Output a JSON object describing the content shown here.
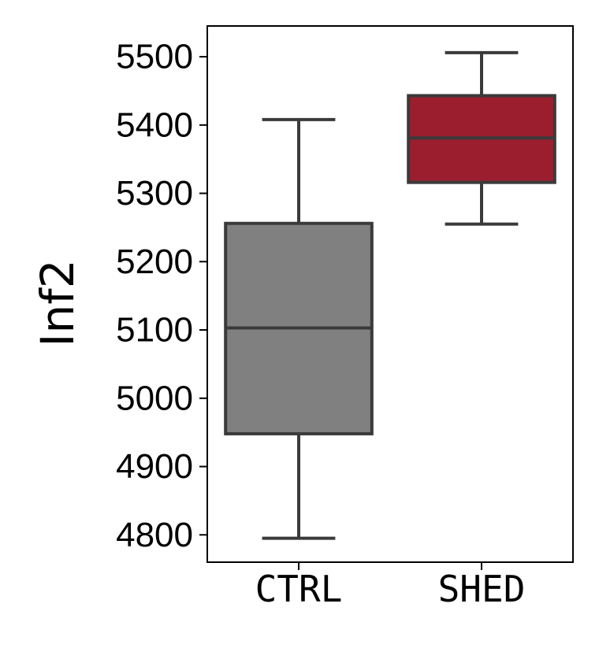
{
  "chart_data": {
    "type": "box",
    "title": "",
    "xlabel": "",
    "ylabel": "Inf2",
    "ylim": [
      4760,
      5545
    ],
    "yticks": [
      4800,
      4900,
      5000,
      5100,
      5200,
      5300,
      5400,
      5500
    ],
    "ytick_labels": [
      "4800",
      "4900",
      "5000",
      "5100",
      "5200",
      "5300",
      "5400",
      "5500"
    ],
    "categories": [
      "CTRL",
      "SHED"
    ],
    "grid": false,
    "legend": "none",
    "series": [
      {
        "category": "CTRL",
        "color": "#808080",
        "whisker_low": 4795,
        "q1": 4948,
        "median": 5103,
        "q3": 5256,
        "whisker_high": 5408
      },
      {
        "category": "SHED",
        "color": "#9b1e2e",
        "whisker_low": 5255,
        "q1": 5316,
        "median": 5381,
        "q3": 5443,
        "whisker_high": 5506
      }
    ],
    "edge_color": "#3a3a3a"
  }
}
